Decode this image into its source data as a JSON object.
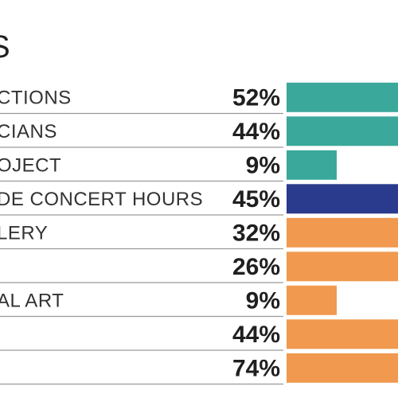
{
  "chart_data": {
    "type": "bar",
    "orientation": "horizontal",
    "title_fragment": "S",
    "categories": [
      "CTIONS",
      "CIANS",
      "OJECT",
      "DE CONCERT HOURS",
      "LERY",
      "",
      "AL ART",
      "",
      ""
    ],
    "value_labels": [
      "52%",
      "44%",
      "9%",
      "45%",
      "32%",
      "26%",
      "9%",
      "44%",
      "74%"
    ],
    "values": [
      52,
      44,
      9,
      45,
      32,
      26,
      9,
      44,
      74
    ],
    "xlim": [
      0,
      100
    ],
    "grid": false,
    "colors": [
      "#3aa89a",
      "#3aa89a",
      "#3aa89a",
      "#2a3a8c",
      "#f0994f",
      "#f0994f",
      "#f0994f",
      "#f0994f",
      "#f0994f"
    ],
    "separator_color": "#9a9a9a"
  }
}
